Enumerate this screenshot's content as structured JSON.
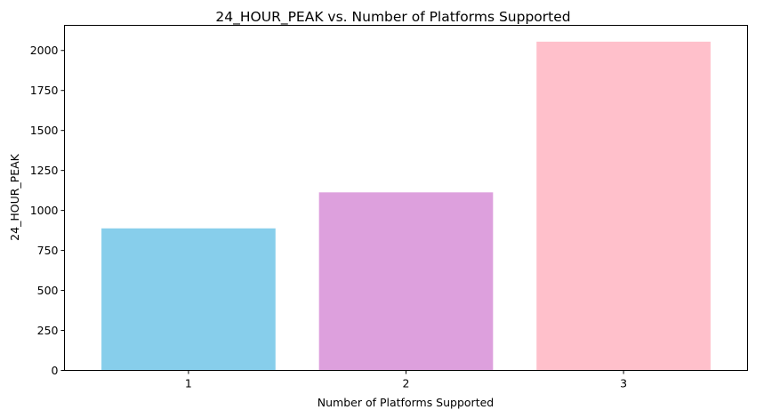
{
  "chart_data": {
    "type": "bar",
    "title": "24_HOUR_PEAK vs. Number of Platforms Supported",
    "xlabel": "Number of Platforms Supported",
    "ylabel": "24_HOUR_PEAK",
    "categories": [
      "1",
      "2",
      "3"
    ],
    "values": [
      888,
      1113,
      2055
    ],
    "colors": [
      "#87ceeb",
      "#dda0dd",
      "#ffc0cb"
    ],
    "ylim": [
      0,
      2157
    ],
    "yticks": [
      0,
      250,
      500,
      750,
      1000,
      1250,
      1500,
      1750,
      2000
    ],
    "grid": false,
    "legend": "none"
  }
}
